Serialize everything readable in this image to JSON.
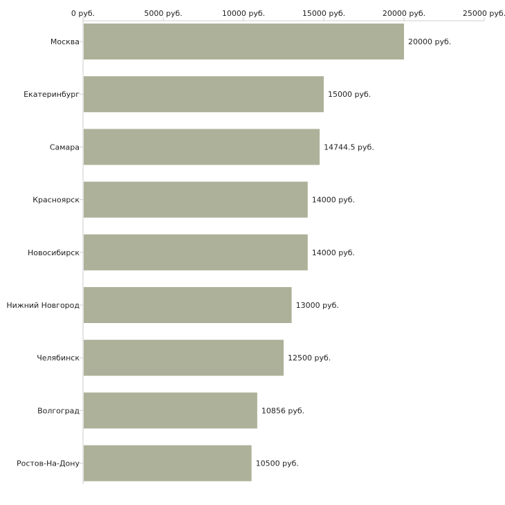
{
  "chart_data": {
    "type": "bar",
    "orientation": "horizontal",
    "categories": [
      "Москва",
      "Екатеринбург",
      "Самара",
      "Красноярск",
      "Новосибирск",
      "Нижний Новгород",
      "Челябинск",
      "Волгоград",
      "Ростов-На-Дону"
    ],
    "values": [
      20000,
      15000,
      14744.5,
      14000,
      14000,
      13000,
      12500,
      10856,
      10500
    ],
    "value_labels": [
      "20000 руб.",
      "15000 руб.",
      "14744.5 руб.",
      "14000 руб.",
      "14000 руб.",
      "13000 руб.",
      "12500 руб.",
      "10856 руб.",
      "10500 руб."
    ],
    "x_ticks": [
      0,
      5000,
      10000,
      15000,
      20000,
      25000
    ],
    "x_tick_labels": [
      "0 руб.",
      "5000 руб.",
      "10000 руб.",
      "15000 руб.",
      "20000 руб.",
      "25000 руб."
    ],
    "xlim": [
      0,
      25000
    ],
    "axis_position": "top",
    "grid": false,
    "bar_color": "#adb199",
    "axis_color": "#cccccc",
    "title": "",
    "xlabel": "",
    "ylabel": ""
  }
}
